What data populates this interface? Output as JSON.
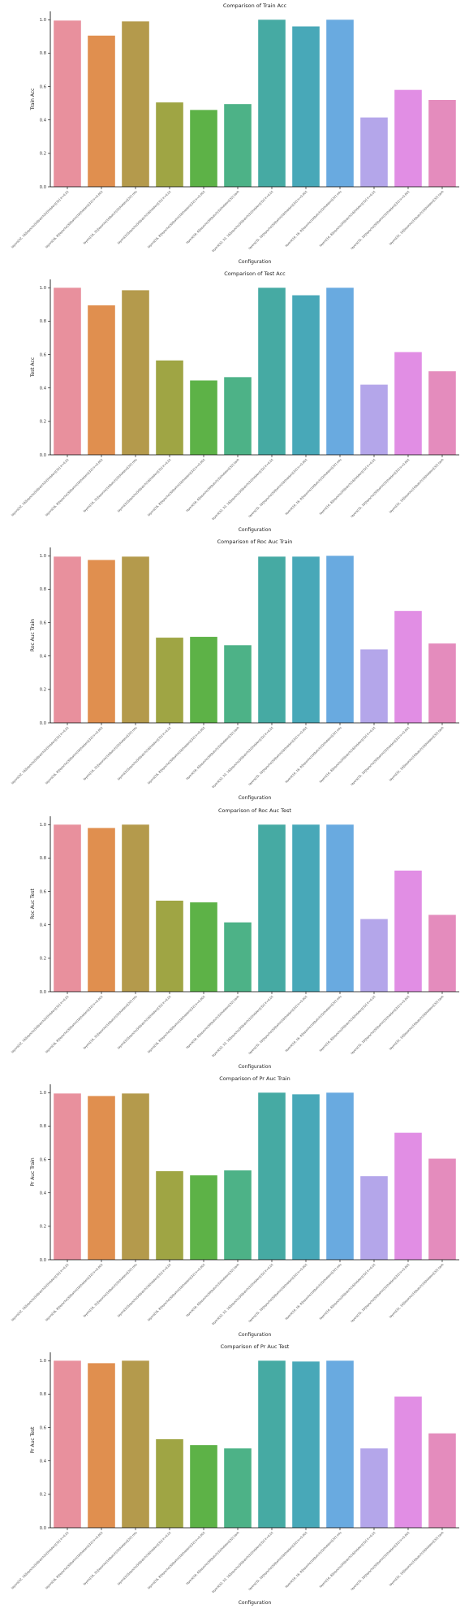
{
  "categories": [
    "layers[32, 16]|epochs|50|batch|32|hidden|[32] lr=0.01",
    "layers[16, 8]|epochs|30|batch|16|hidden|[32] lr=0.001",
    "layers[16, 32]|epochs|10|batch|32|hidden|[32] relu",
    "layers[32]|epochs|50|batch|16|hidden|[32] lr=0.01",
    "layers[16, 8]|epochs|30|batch|16|hidden|[32] lr=0.001",
    "layers[16, 8]|epochs|50|batch|32|hidden|[32] tanh",
    "layers[32, 32, 16]|epochs|30|batch|32|hidden|[32] lr=0.01",
    "layers[32, 16]|epochs|50|batch|16|hidden|[32] lr=0.001",
    "layers[16, 16, 8]|epochs|10|batch|32|hidden|[32] relu",
    "layers[16, 8]|epochs|30|batch|16|hidden|[32] lr=0.01",
    "layers[32, 16]|epochs|50|batch|32|hidden|[32] lr=0.001",
    "layers[32, 16]|epochs|10|batch|16|hidden|[32] tanh"
  ],
  "colors": [
    "#e8909d",
    "#e08f4f",
    "#b49a4c",
    "#9fa544",
    "#5db247",
    "#4db287",
    "#46aaa3",
    "#48a8b8",
    "#69aae0",
    "#b4a6ea",
    "#e18ee4",
    "#e48cbd"
  ],
  "chart_data": [
    {
      "type": "bar",
      "title": "Comparison of Train Acc",
      "xlabel": "Configuration",
      "ylabel": "Train Acc",
      "ylim": [
        0,
        1.05
      ],
      "yticks": [
        "0.0",
        "0.2",
        "0.4",
        "0.6",
        "0.8",
        "1.0"
      ],
      "values": [
        0.995,
        0.905,
        0.99,
        0.505,
        0.46,
        0.495,
        1.0,
        0.96,
        1.0,
        0.415,
        0.58,
        0.52
      ]
    },
    {
      "type": "bar",
      "title": "Comparison of Test Acc",
      "xlabel": "Configuration",
      "ylabel": "Test Acc",
      "ylim": [
        0,
        1.05
      ],
      "yticks": [
        "0.0",
        "0.2",
        "0.4",
        "0.6",
        "0.8",
        "1.0"
      ],
      "values": [
        1.0,
        0.895,
        0.985,
        0.565,
        0.445,
        0.465,
        1.0,
        0.955,
        1.0,
        0.42,
        0.615,
        0.5
      ]
    },
    {
      "type": "bar",
      "title": "Comparison of Roc Auc Train",
      "xlabel": "Configuration",
      "ylabel": "Roc Auc Train",
      "ylim": [
        0,
        1.05
      ],
      "yticks": [
        "0.0",
        "0.2",
        "0.4",
        "0.6",
        "0.8",
        "1.0"
      ],
      "values": [
        0.995,
        0.975,
        0.995,
        0.51,
        0.515,
        0.465,
        0.995,
        0.995,
        1.0,
        0.44,
        0.67,
        0.475
      ]
    },
    {
      "type": "bar",
      "title": "Comparison of Roc Auc Test",
      "xlabel": "Configuration",
      "ylabel": "Roc Auc Test",
      "ylim": [
        0,
        1.05
      ],
      "yticks": [
        "0.0",
        "0.2",
        "0.4",
        "0.6",
        "0.8",
        "1.0"
      ],
      "values": [
        1.0,
        0.98,
        1.0,
        0.545,
        0.535,
        0.415,
        1.0,
        1.0,
        1.0,
        0.435,
        0.725,
        0.46
      ]
    },
    {
      "type": "bar",
      "title": "Comparison of Pr Auc Train",
      "xlabel": "Configuration",
      "ylabel": "Pr Auc Train",
      "ylim": [
        0,
        1.05
      ],
      "yticks": [
        "0.0",
        "0.2",
        "0.4",
        "0.6",
        "0.8",
        "1.0"
      ],
      "values": [
        0.995,
        0.98,
        0.995,
        0.53,
        0.505,
        0.535,
        1.0,
        0.99,
        1.0,
        0.5,
        0.76,
        0.605
      ]
    },
    {
      "type": "bar",
      "title": "Comparison of Pr Auc Test",
      "xlabel": "Configuration",
      "ylabel": "Pr Auc Test",
      "ylim": [
        0,
        1.05
      ],
      "yticks": [
        "0.0",
        "0.2",
        "0.4",
        "0.6",
        "0.8",
        "1.0"
      ],
      "values": [
        1.0,
        0.985,
        1.0,
        0.53,
        0.495,
        0.475,
        1.0,
        0.995,
        1.0,
        0.475,
        0.785,
        0.565
      ]
    }
  ]
}
